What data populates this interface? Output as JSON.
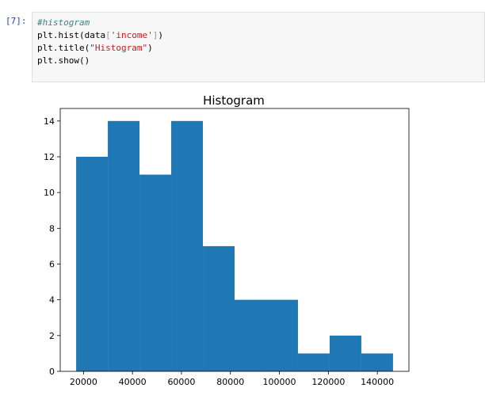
{
  "cell": {
    "prompt": "[7]:",
    "lines": {
      "l1": "#histogram",
      "l2_pre": "plt.hist(data",
      "l2_lb": "[",
      "l2_str": "'income'",
      "l2_rb": "]",
      "l2_post": ")",
      "l3_pre": "plt.title(",
      "l3_str": "\"Histogram\"",
      "l3_post": ")",
      "l4": "plt.show()"
    }
  },
  "chart_data": {
    "type": "bar",
    "title": "Histogram",
    "xlabel": "",
    "ylabel": "",
    "bar_color": "#1f77b4",
    "bin_edges": [
      17000,
      29940,
      42880,
      55820,
      68760,
      81700,
      94640,
      107580,
      120520,
      133460,
      146400
    ],
    "values": [
      12,
      14,
      11,
      14,
      7,
      4,
      4,
      1,
      2,
      1
    ],
    "xlim": [
      10500,
      152900
    ],
    "ylim": [
      0,
      14.7
    ],
    "x_ticks": [
      20000,
      40000,
      60000,
      80000,
      100000,
      120000,
      140000
    ],
    "x_tick_labels": [
      "20000",
      "40000",
      "60000",
      "80000",
      "100000",
      "120000",
      "140000"
    ],
    "y_ticks": [
      0,
      2,
      4,
      6,
      8,
      10,
      12,
      14
    ],
    "y_tick_labels": [
      "0",
      "2",
      "4",
      "6",
      "8",
      "10",
      "12",
      "14"
    ]
  }
}
